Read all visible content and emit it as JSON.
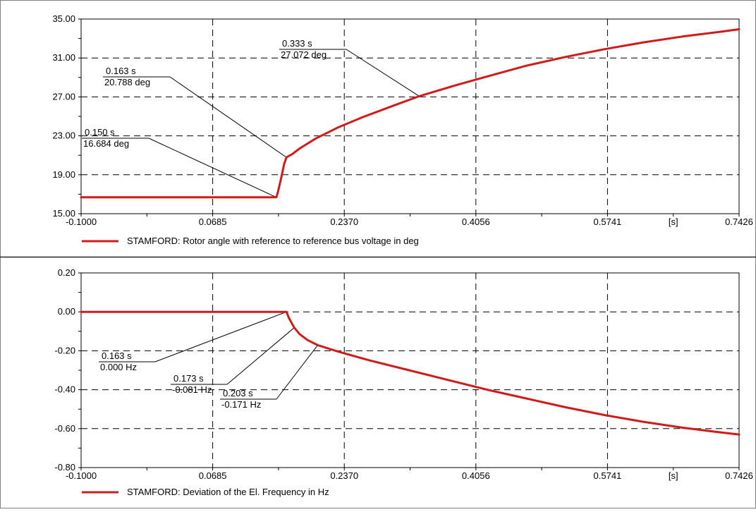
{
  "chart_data": [
    {
      "type": "line",
      "xlim": [
        -0.1,
        0.7426
      ],
      "ylim": [
        15.0,
        35.0
      ],
      "x_ticks": [
        "-0.1000",
        "0.0685",
        "0.2370",
        "0.4056",
        "0.5741",
        "0.7426"
      ],
      "x_unit_label": "[s]",
      "y_ticks": [
        "15.00",
        "19.00",
        "23.00",
        "27.00",
        "31.00",
        "35.00"
      ],
      "y_tick_values": [
        15,
        19,
        23,
        27,
        31,
        35
      ],
      "grid": true,
      "legend_position": "bottom-left",
      "series": [
        {
          "name": "STAMFORD: Rotor angle with reference to reference bus voltage in deg",
          "color": "#d11a1a",
          "x": [
            -0.1,
            0.0,
            0.1,
            0.15,
            0.152,
            0.156,
            0.16,
            0.163,
            0.17,
            0.18,
            0.2,
            0.23,
            0.26,
            0.3,
            0.333,
            0.38,
            0.42,
            0.47,
            0.52,
            0.57,
            0.62,
            0.67,
            0.72,
            0.7426
          ],
          "y": [
            16.684,
            16.684,
            16.684,
            16.684,
            17.2,
            18.6,
            20.1,
            20.788,
            21.1,
            21.7,
            22.7,
            23.9,
            24.9,
            26.1,
            27.072,
            28.2,
            29.1,
            30.2,
            31.1,
            31.9,
            32.6,
            33.2,
            33.7,
            33.95
          ]
        }
      ],
      "annotations": [
        {
          "x": 0.15,
          "y": 16.684,
          "time": "0.150 s",
          "value": "16.684 deg"
        },
        {
          "x": 0.163,
          "y": 20.788,
          "time": "0.163 s",
          "value": "20.788 deg"
        },
        {
          "x": 0.333,
          "y": 27.072,
          "time": "0.333 s",
          "value": "27.072 deg"
        }
      ]
    },
    {
      "type": "line",
      "xlim": [
        -0.1,
        0.7426
      ],
      "ylim": [
        -0.8,
        0.2
      ],
      "x_ticks": [
        "-0.1000",
        "0.0685",
        "0.2370",
        "0.4056",
        "0.5741",
        "0.7426"
      ],
      "x_unit_label": "[s]",
      "y_ticks": [
        "-0.80",
        "-0.60",
        "-0.40",
        "-0.20",
        "0.00",
        "0.20"
      ],
      "y_tick_values": [
        -0.8,
        -0.6,
        -0.4,
        -0.2,
        0.0,
        0.2
      ],
      "grid": true,
      "legend_position": "bottom-left",
      "series": [
        {
          "name": "STAMFORD: Deviation of the El. Frequency in Hz",
          "color": "#d11a1a",
          "x": [
            -0.1,
            0.0,
            0.1,
            0.163,
            0.166,
            0.17,
            0.173,
            0.18,
            0.19,
            0.203,
            0.23,
            0.27,
            0.32,
            0.37,
            0.42,
            0.47,
            0.52,
            0.57,
            0.62,
            0.67,
            0.72,
            0.7426
          ],
          "y": [
            0.0,
            0.0,
            0.0,
            0.0,
            -0.03,
            -0.06,
            -0.081,
            -0.115,
            -0.145,
            -0.171,
            -0.205,
            -0.25,
            -0.3,
            -0.35,
            -0.4,
            -0.445,
            -0.49,
            -0.53,
            -0.565,
            -0.595,
            -0.62,
            -0.63
          ]
        }
      ],
      "annotations": [
        {
          "x": 0.163,
          "y": 0.0,
          "time": "0.163 s",
          "value": "0.000 Hz"
        },
        {
          "x": 0.173,
          "y": -0.081,
          "time": "0.173 s",
          "value": "-0.081 Hz"
        },
        {
          "x": 0.203,
          "y": -0.171,
          "time": "0.203 s",
          "value": "-0.171 Hz"
        }
      ]
    }
  ]
}
